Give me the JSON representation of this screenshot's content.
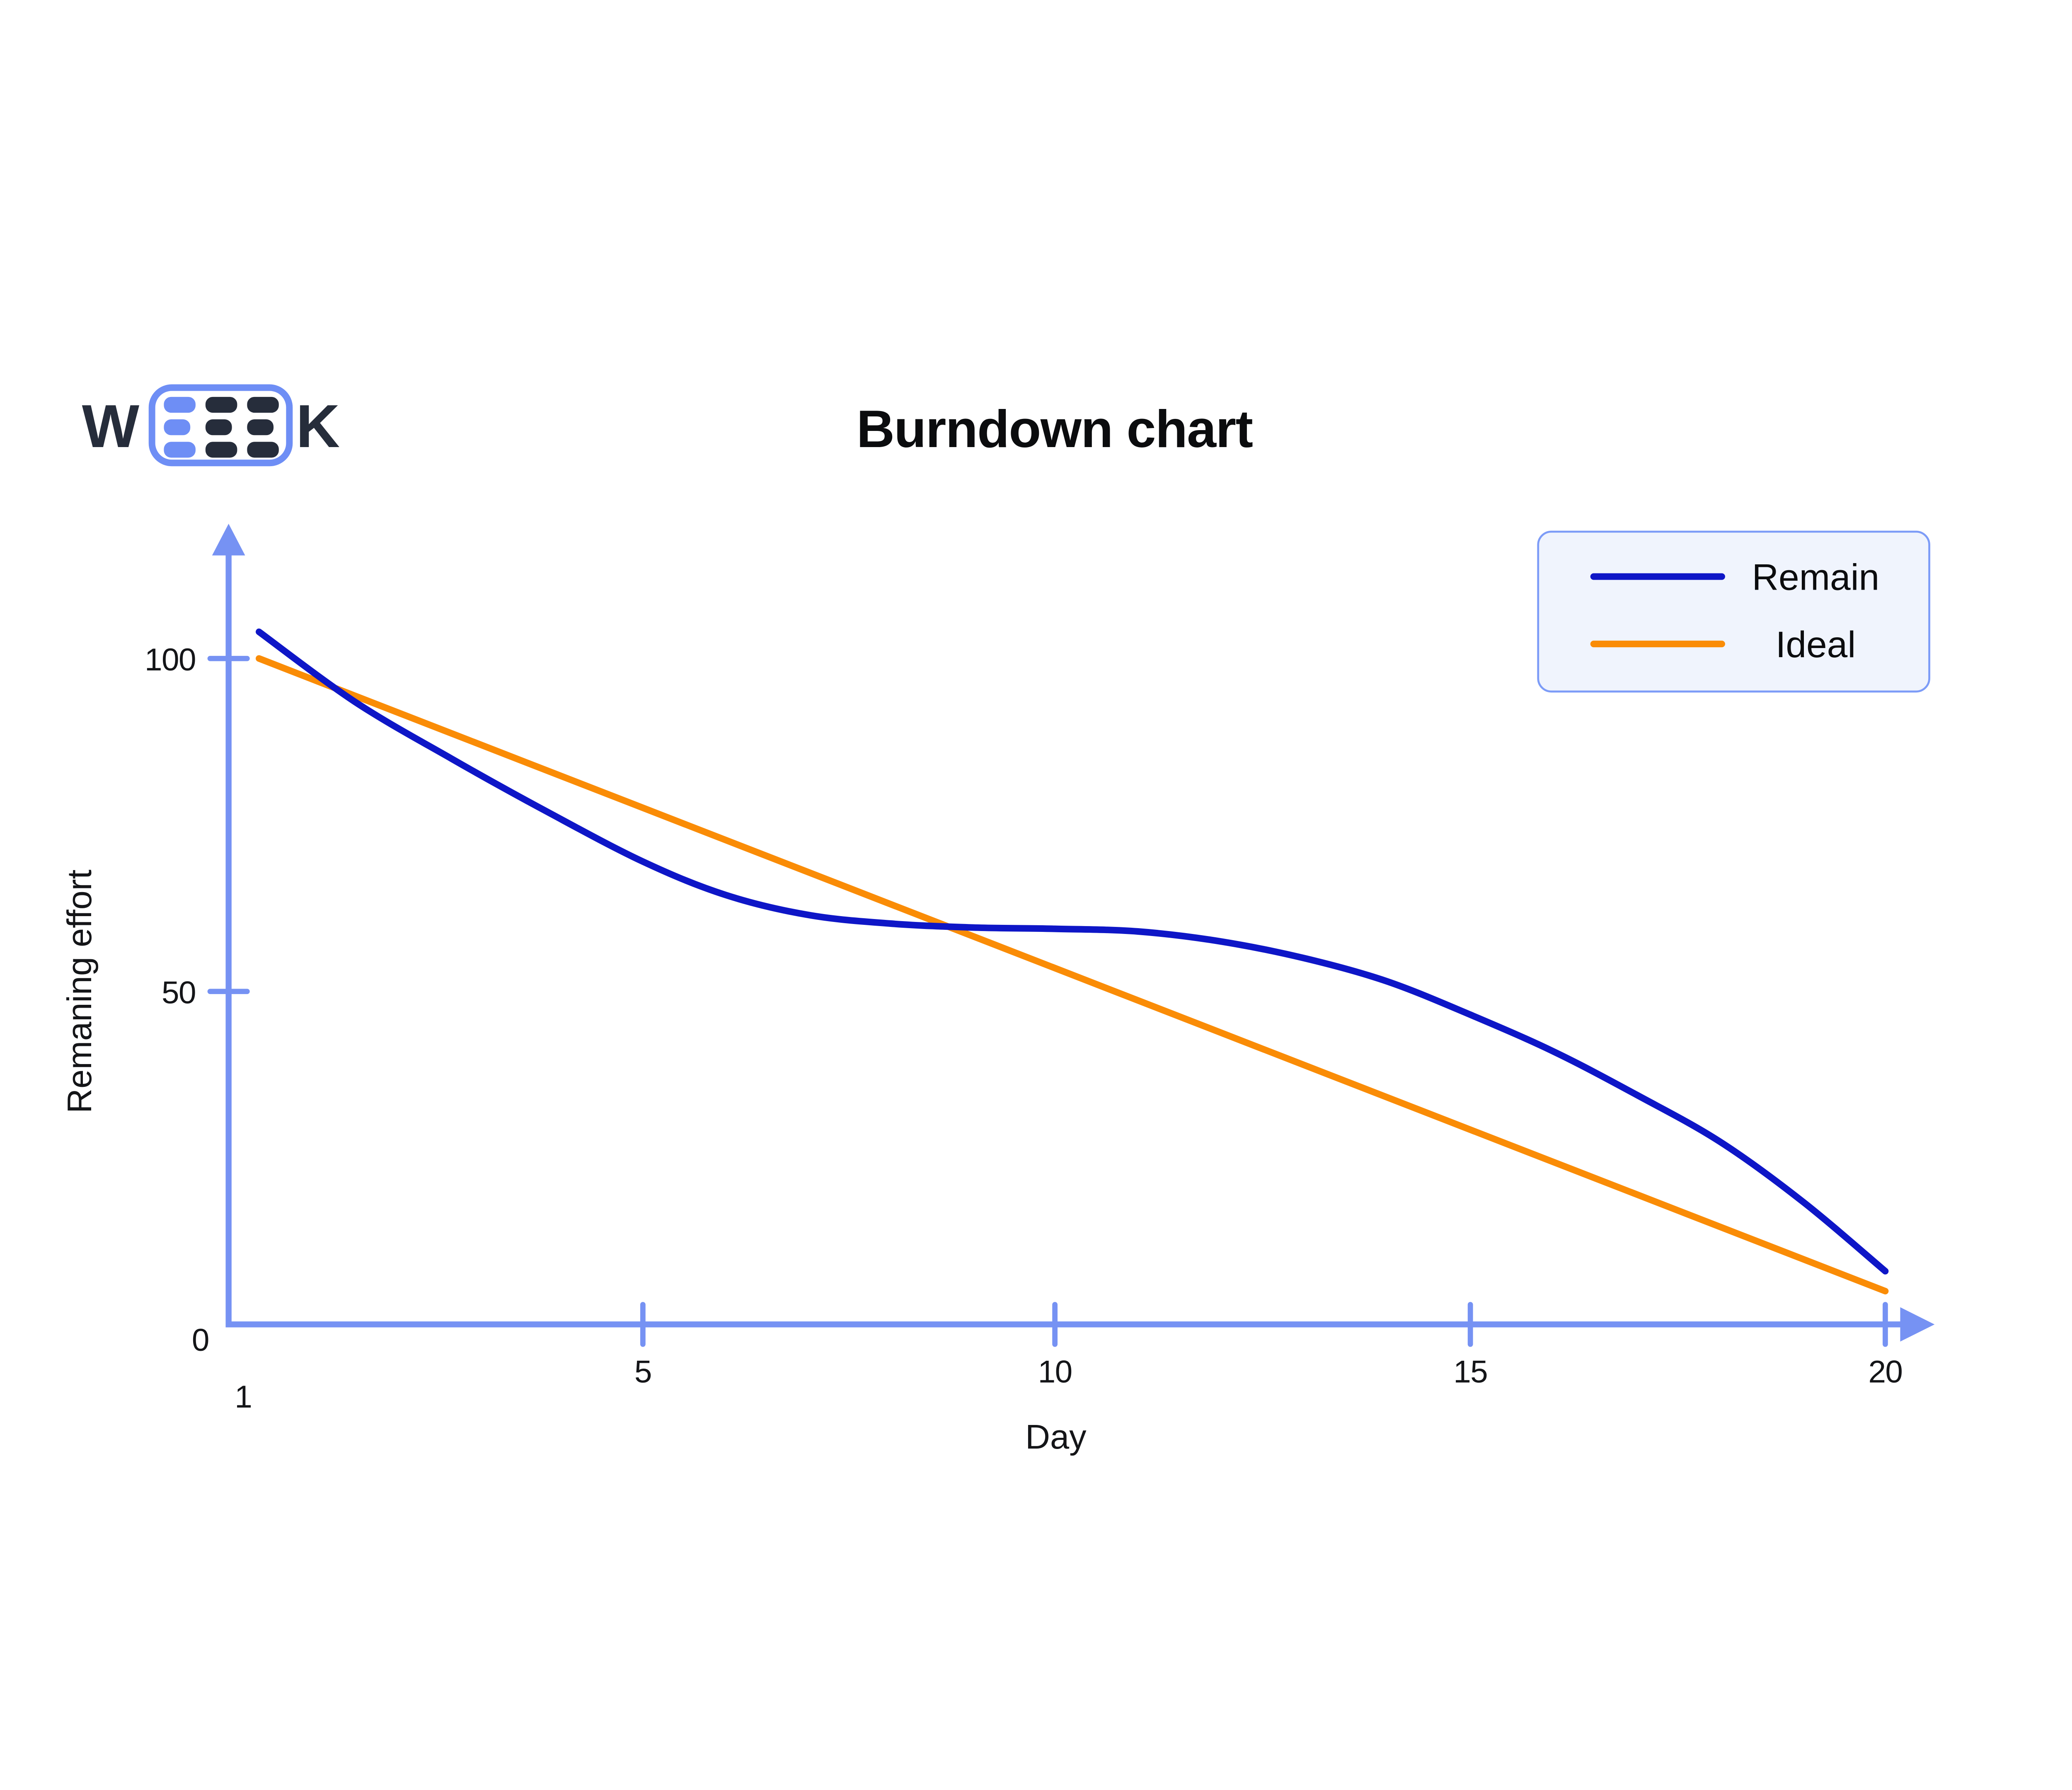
{
  "title": "Burndown chart",
  "logo": {
    "prefix": "W",
    "suffix": "K",
    "letter_color": "#262d3b",
    "box_color": "#6e8ef5",
    "bar_color_highlight": "#6e8ef5",
    "bar_color_dark": "#262d3b"
  },
  "legend": {
    "background": "#f0f4fd",
    "border_color": "#7d9cf7",
    "items": [
      {
        "label": "Remain",
        "color": "#0e16c7"
      },
      {
        "label": "Ideal",
        "color": "#fa8c06"
      }
    ]
  },
  "chart_data": {
    "type": "line",
    "title": "Burndown chart",
    "xlabel": "Day",
    "ylabel": "Remaning effort",
    "x": [
      1,
      2,
      3,
      4,
      5,
      6,
      7,
      8,
      9,
      10,
      11,
      12,
      13,
      14,
      15,
      16,
      17,
      18,
      19,
      20
    ],
    "series": [
      {
        "name": "Remain",
        "color": "#0e16c7",
        "smooth": true,
        "values": [
          104,
          93.5,
          85,
          77,
          69.5,
          64.5,
          61.5,
          60.2,
          59.6,
          59.4,
          59,
          57.5,
          55,
          51.5,
          46.5,
          41,
          34.5,
          27.5,
          18.5,
          8
        ]
      },
      {
        "name": "Ideal",
        "color": "#fa8c06",
        "straight": true,
        "values": [
          100,
          95,
          90,
          85,
          80,
          75,
          70,
          65,
          60,
          55,
          50,
          45,
          40,
          35,
          30,
          25,
          20,
          15,
          10,
          5
        ]
      }
    ],
    "x_tick_labels": [
      "1",
      "5",
      "10",
      "15",
      "20"
    ],
    "x_ticks_marked": [
      5,
      10,
      15,
      20
    ],
    "y_tick_labels": [
      "0",
      "50",
      "100"
    ],
    "y_ticks_marked": [
      50,
      100
    ],
    "xlim": [
      1,
      20
    ],
    "ylim": [
      0,
      115
    ],
    "grid": false,
    "legend_position": "top-right",
    "axis_color": "#7692f3"
  }
}
